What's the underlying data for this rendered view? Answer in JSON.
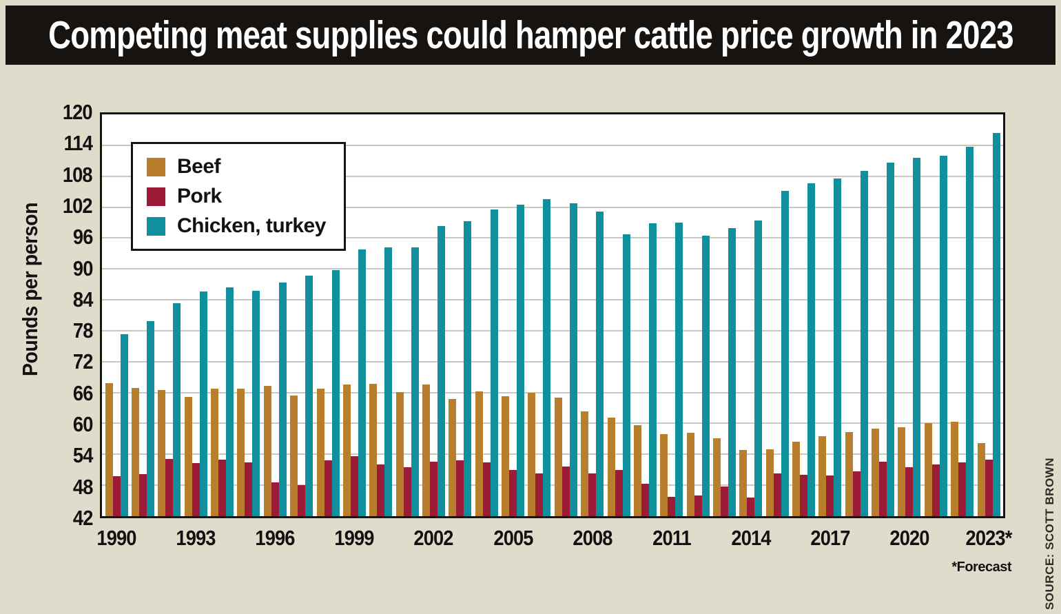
{
  "title": "Competing meat supplies could hamper cattle price growth in 2023",
  "y_axis": {
    "label": "Pounds per person",
    "min": 42,
    "max": 120,
    "tick_step": 6,
    "ticks": [
      120,
      114,
      108,
      102,
      96,
      90,
      84,
      78,
      72,
      66,
      60,
      54,
      48,
      42
    ]
  },
  "x_axis": {
    "tick_labels": [
      "1990",
      "1993",
      "1996",
      "1999",
      "2002",
      "2005",
      "2008",
      "2011",
      "2014",
      "2017",
      "2020",
      "2023*"
    ],
    "label_every_n_years": 3
  },
  "legend": {
    "items": [
      {
        "label": "Beef",
        "color": "#B87E2B"
      },
      {
        "label": "Pork",
        "color": "#9C1C38"
      },
      {
        "label": "Chicken, turkey",
        "color": "#0F909C"
      }
    ]
  },
  "footnote": "*Forecast",
  "source": "SOURCE: SCOTT BROWN",
  "colors": {
    "page_background": "#E0DCCB",
    "title_band_background": "#171310",
    "title_text": "#FFFFFF",
    "plot_background": "#FFFFFF",
    "plot_border": "#151515",
    "gridline": "#C9C9C4"
  },
  "chart_data": {
    "type": "bar",
    "title": "Competing meat supplies could hamper cattle price growth in 2023",
    "xlabel": "",
    "ylabel": "Pounds per person",
    "ylim": [
      42,
      120
    ],
    "grid": true,
    "legend_position": "upper-left-inside",
    "footnote": "*Forecast",
    "source": "SOURCE: SCOTT BROWN",
    "categories": [
      "1990",
      "1991",
      "1992",
      "1993",
      "1994",
      "1995",
      "1996",
      "1997",
      "1998",
      "1999",
      "2000",
      "2001",
      "2002",
      "2003",
      "2004",
      "2005",
      "2006",
      "2007",
      "2008",
      "2009",
      "2010",
      "2011",
      "2012",
      "2013",
      "2014",
      "2015",
      "2016",
      "2017",
      "2018",
      "2019",
      "2020",
      "2021",
      "2022",
      "2023*"
    ],
    "series": [
      {
        "name": "Beef",
        "color": "#B87E2B",
        "values": [
          67.8,
          66.9,
          66.5,
          65.1,
          66.7,
          66.8,
          67.3,
          65.4,
          66.8,
          67.6,
          67.7,
          66.1,
          67.5,
          64.7,
          66.2,
          65.3,
          65.9,
          65.0,
          62.4,
          61.2,
          59.6,
          57.9,
          58.2,
          57.1,
          54.9,
          55.0,
          56.5,
          57.5,
          58.3,
          59.0,
          59.2,
          60.0,
          60.3,
          56.2
        ]
      },
      {
        "name": "Pork",
        "color": "#9C1C38",
        "values": [
          49.8,
          50.2,
          53.1,
          52.3,
          53.0,
          52.5,
          48.6,
          48.0,
          52.8,
          53.6,
          52.0,
          51.5,
          52.6,
          52.8,
          52.4,
          50.9,
          50.3,
          51.6,
          50.3,
          50.9,
          48.3,
          45.7,
          46.0,
          47.8,
          45.6,
          50.3,
          50.0,
          49.9,
          50.7,
          52.6,
          51.5,
          52.1,
          52.5,
          53.0
        ]
      },
      {
        "name": "Chicken, turkey",
        "color": "#0F909C",
        "values": [
          77.3,
          79.8,
          83.3,
          85.6,
          86.4,
          85.8,
          87.4,
          88.7,
          89.8,
          93.8,
          94.2,
          94.2,
          98.3,
          99.2,
          101.6,
          102.5,
          103.6,
          102.8,
          101.2,
          96.7,
          98.8,
          99.0,
          96.5,
          97.9,
          99.4,
          105.1,
          106.6,
          107.6,
          109.0,
          110.7,
          111.6,
          112.0,
          113.7,
          116.4
        ]
      }
    ]
  }
}
